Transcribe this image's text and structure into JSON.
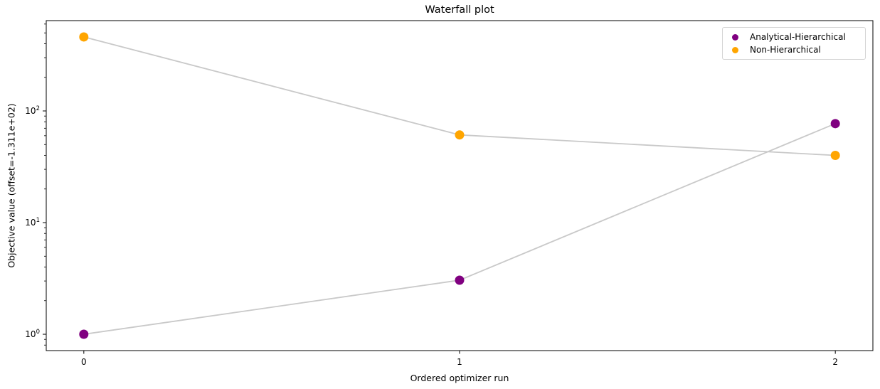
{
  "chart_data": {
    "type": "scatter",
    "title": "Waterfall plot",
    "xlabel": "Ordered optimizer run",
    "ylabel": "Objective value (offset=-1.311e+02)",
    "yscale": "log",
    "grid": false,
    "legend_position": "upper right",
    "x": [
      0,
      1,
      2
    ],
    "xticks": [
      0,
      1,
      2
    ],
    "yticks": [
      1,
      10,
      100
    ],
    "xlim": [
      -0.1,
      2.1
    ],
    "ylim": [
      0.714,
      644
    ],
    "series": [
      {
        "name": "Analytical-Hierarchical",
        "color": "#800080",
        "values": [
          1.0,
          3.05,
          77
        ]
      },
      {
        "name": "Non-Hierarchical",
        "color": "#ffa500",
        "values": [
          460,
          61,
          40
        ]
      }
    ],
    "line_color": "#c9c9c9",
    "axis_color": "#000000",
    "marker_radius": 6.5
  }
}
